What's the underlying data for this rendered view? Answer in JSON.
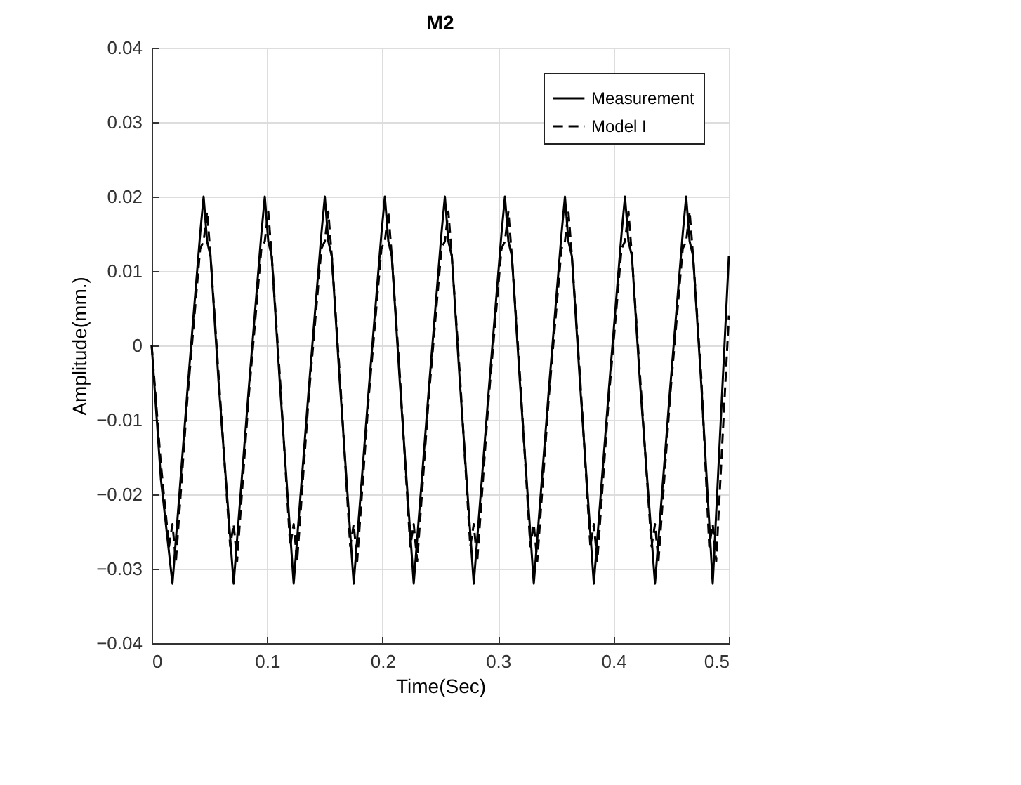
{
  "chart_data": {
    "type": "line",
    "title": "M2",
    "xlabel": "Time(Sec)",
    "ylabel": "Amplitude(mm.)",
    "xlim": [
      0,
      0.5
    ],
    "xticks": [
      0,
      0.1,
      0.2,
      0.3,
      0.4,
      0.5
    ],
    "ylim": [
      -0.04,
      0.04
    ],
    "yticks": [
      -0.04,
      -0.03,
      -0.02,
      -0.01,
      0,
      0.01,
      0.02,
      0.03,
      0.04
    ],
    "grid": true,
    "legend": "top right",
    "series": [
      {
        "name": "Measurement",
        "color": "#000000",
        "line_style": "solid",
        "x": [
          0,
          0.008,
          0.018,
          0.031,
          0.042,
          0.045,
          0.048,
          0.051,
          0.058,
          0.071,
          0.084,
          0.095,
          0.098,
          0.101,
          0.104,
          0.111,
          0.123,
          0.136,
          0.147,
          0.15,
          0.153,
          0.156,
          0.163,
          0.175,
          0.188,
          0.199,
          0.202,
          0.205,
          0.208,
          0.215,
          0.227,
          0.24,
          0.251,
          0.254,
          0.257,
          0.26,
          0.267,
          0.279,
          0.292,
          0.303,
          0.306,
          0.309,
          0.312,
          0.319,
          0.331,
          0.344,
          0.355,
          0.358,
          0.361,
          0.364,
          0.371,
          0.383,
          0.396,
          0.407,
          0.41,
          0.413,
          0.416,
          0.423,
          0.436,
          0.449,
          0.46,
          0.463,
          0.466,
          0.469,
          0.476,
          0.486,
          0.5
        ],
        "values": [
          0,
          -0.018,
          -0.032,
          -0.006,
          0.015,
          0.02,
          0.014,
          0.012,
          -0.005,
          -0.032,
          -0.006,
          0.015,
          0.02,
          0.014,
          0.012,
          -0.005,
          -0.032,
          -0.006,
          0.015,
          0.02,
          0.014,
          0.012,
          -0.005,
          -0.032,
          -0.006,
          0.015,
          0.02,
          0.014,
          0.012,
          -0.005,
          -0.032,
          -0.006,
          0.015,
          0.02,
          0.014,
          0.012,
          -0.005,
          -0.032,
          -0.006,
          0.015,
          0.02,
          0.014,
          0.012,
          -0.005,
          -0.032,
          -0.006,
          0.015,
          0.02,
          0.014,
          0.012,
          -0.005,
          -0.032,
          -0.006,
          0.015,
          0.02,
          0.014,
          0.012,
          -0.005,
          -0.032,
          -0.006,
          0.015,
          0.02,
          0.014,
          0.012,
          -0.005,
          -0.032,
          0.012
        ]
      },
      {
        "name": "Model I",
        "color": "#000000",
        "line_style": "dashed",
        "x": [
          0,
          0.008,
          0.015,
          0.018,
          0.021,
          0.031,
          0.042,
          0.045,
          0.048,
          0.051,
          0.058,
          0.068,
          0.071,
          0.074,
          0.084,
          0.095,
          0.098,
          0.101,
          0.104,
          0.111,
          0.12,
          0.123,
          0.126,
          0.136,
          0.147,
          0.15,
          0.153,
          0.156,
          0.163,
          0.172,
          0.175,
          0.178,
          0.188,
          0.199,
          0.202,
          0.205,
          0.208,
          0.215,
          0.224,
          0.227,
          0.23,
          0.24,
          0.251,
          0.254,
          0.257,
          0.26,
          0.267,
          0.276,
          0.279,
          0.282,
          0.292,
          0.303,
          0.306,
          0.309,
          0.312,
          0.319,
          0.328,
          0.331,
          0.334,
          0.344,
          0.355,
          0.358,
          0.361,
          0.364,
          0.371,
          0.38,
          0.383,
          0.386,
          0.396,
          0.407,
          0.41,
          0.413,
          0.416,
          0.423,
          0.433,
          0.436,
          0.439,
          0.449,
          0.46,
          0.463,
          0.466,
          0.469,
          0.476,
          0.483,
          0.486,
          0.489,
          0.5
        ],
        "values": [
          0,
          -0.016,
          -0.027,
          -0.024,
          -0.029,
          -0.007,
          0.013,
          0.014,
          0.018,
          0.012,
          -0.004,
          -0.027,
          -0.024,
          -0.029,
          -0.007,
          0.013,
          0.014,
          0.018,
          0.012,
          -0.004,
          -0.027,
          -0.024,
          -0.029,
          -0.007,
          0.013,
          0.014,
          0.018,
          0.012,
          -0.004,
          -0.027,
          -0.024,
          -0.029,
          -0.007,
          0.013,
          0.014,
          0.018,
          0.012,
          -0.004,
          -0.027,
          -0.024,
          -0.029,
          -0.007,
          0.013,
          0.014,
          0.018,
          0.012,
          -0.004,
          -0.027,
          -0.024,
          -0.029,
          -0.007,
          0.013,
          0.014,
          0.018,
          0.012,
          -0.004,
          -0.027,
          -0.024,
          -0.029,
          -0.007,
          0.013,
          0.014,
          0.018,
          0.012,
          -0.004,
          -0.027,
          -0.024,
          -0.029,
          -0.007,
          0.013,
          0.014,
          0.018,
          0.012,
          -0.004,
          -0.027,
          -0.024,
          -0.029,
          -0.007,
          0.013,
          0.014,
          0.018,
          0.012,
          -0.004,
          -0.027,
          -0.024,
          -0.029,
          0.004
        ]
      }
    ]
  }
}
